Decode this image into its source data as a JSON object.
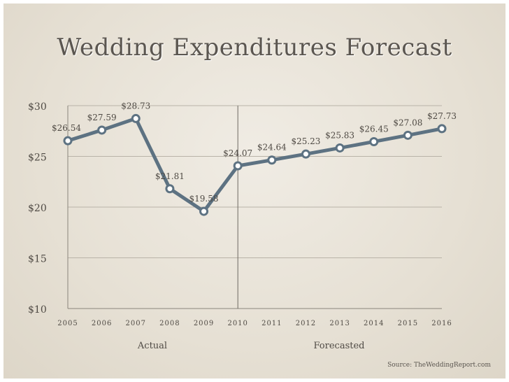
{
  "chart_data": {
    "type": "line",
    "title": "Wedding Expenditures Forecast",
    "x": [
      "2005",
      "2006",
      "2007",
      "2008",
      "2009",
      "2010",
      "2011",
      "2012",
      "2013",
      "2014",
      "2015",
      "2016"
    ],
    "series": [
      {
        "values": [
          26.54,
          27.59,
          28.73,
          21.81,
          19.58,
          24.07,
          24.64,
          25.23,
          25.83,
          26.45,
          27.08,
          27.73
        ],
        "labels": [
          "$26.54",
          "$27.59",
          "$28.73",
          "$21.81",
          "$19.58",
          "$24.07",
          "$24.64",
          "$25.23",
          "$25.83",
          "$26.45",
          "$27.08",
          "$27.73"
        ]
      }
    ],
    "ylim": [
      10,
      30
    ],
    "yticks": [
      10,
      15,
      20,
      25,
      30
    ],
    "ytick_labels": [
      "$10",
      "$15",
      "$20",
      "$25",
      "$30"
    ],
    "grid": true,
    "divider_after": "2009",
    "region_labels": [
      "Actual",
      "Forecasted"
    ],
    "line_color": "#5d7282",
    "marker_fill": "#ffffff"
  },
  "source": "Source: TheWeddingReport.com"
}
